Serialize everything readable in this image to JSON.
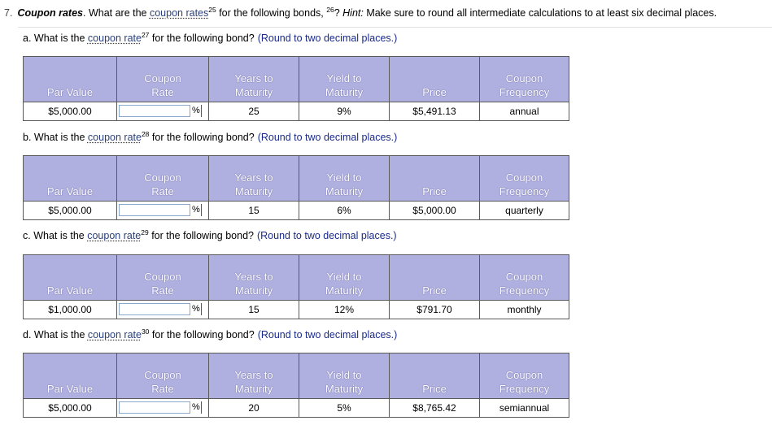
{
  "question": {
    "number": "7.",
    "title": "Coupon rates",
    "text_before": ". What are the ",
    "link_text": "coupon rates",
    "link_sup": "25",
    "text_after": " for the following bonds, ",
    "sup2": "26",
    "text_q": "? ",
    "hint_label": "Hint:",
    "hint_text": " Make sure to round all intermediate calculations to at least six decimal places."
  },
  "headers": {
    "par": "Par Value",
    "coupon_rate": [
      "Coupon",
      "Rate"
    ],
    "years": [
      "Years to",
      "Maturity"
    ],
    "ytm": [
      "Yield to",
      "Maturity"
    ],
    "price": "Price",
    "freq": [
      "Coupon",
      "Frequency"
    ]
  },
  "percent_sign": "%",
  "parts": [
    {
      "label": "a.",
      "prompt_before": " What is the ",
      "link": "coupon rate",
      "sup": "27",
      "prompt_after": " for the following bond?",
      "round": "(Round to two decimal places.)",
      "par": "$5,000.00",
      "input_value": "",
      "years": "25",
      "ytm": "9%",
      "price": "$5,491.13",
      "freq": "annual"
    },
    {
      "label": "b.",
      "prompt_before": " What is the ",
      "link": "coupon rate",
      "sup": "28",
      "prompt_after": " for the following bond?",
      "round": "(Round to two decimal places.)",
      "par": "$5,000.00",
      "input_value": "",
      "years": "15",
      "ytm": "6%",
      "price": "$5,000.00",
      "freq": "quarterly"
    },
    {
      "label": "c.",
      "prompt_before": " What is the ",
      "link": "coupon rate",
      "sup": "29",
      "prompt_after": " for the following bond?",
      "round": "(Round to two decimal places.)",
      "par": "$1,000.00",
      "input_value": "",
      "years": "15",
      "ytm": "12%",
      "price": "$791.70",
      "freq": "monthly"
    },
    {
      "label": "d.",
      "prompt_before": " What is the ",
      "link": "coupon rate",
      "sup": "30",
      "prompt_after": " for the following bond?",
      "round": "(Round to two decimal places.)",
      "par": "$5,000.00",
      "input_value": "",
      "years": "20",
      "ytm": "5%",
      "price": "$8,765.42",
      "freq": "semiannual"
    }
  ]
}
